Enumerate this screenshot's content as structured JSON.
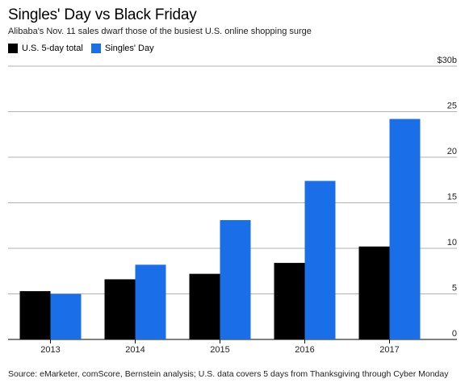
{
  "chart_data": {
    "type": "bar",
    "title": "Singles' Day vs Black Friday",
    "subtitle": "Alibaba's Nov. 11 sales dwarf those of the busiest U.S. online shopping surge",
    "categories": [
      "2013",
      "2014",
      "2015",
      "2016",
      "2017"
    ],
    "series": [
      {
        "name": "U.S. 5-day total",
        "color": "#000000",
        "values": [
          5.3,
          6.6,
          7.2,
          8.4,
          10.2
        ]
      },
      {
        "name": "Singles' Day",
        "color": "#1a6fe8",
        "values": [
          5.0,
          8.2,
          13.1,
          17.4,
          24.2
        ]
      }
    ],
    "ylim": [
      0,
      30
    ],
    "yticks": [
      {
        "value": 0,
        "label": "0"
      },
      {
        "value": 5,
        "label": "5"
      },
      {
        "value": 10,
        "label": "10"
      },
      {
        "value": 15,
        "label": "15"
      },
      {
        "value": 20,
        "label": "20"
      },
      {
        "value": 25,
        "label": "25"
      },
      {
        "value": 30,
        "label": "$30b"
      }
    ],
    "grid": true,
    "source": "Source: eMarketer, comScore, Bernstein analysis; U.S. data covers 5 days from Thanksgiving through Cyber Monday"
  }
}
